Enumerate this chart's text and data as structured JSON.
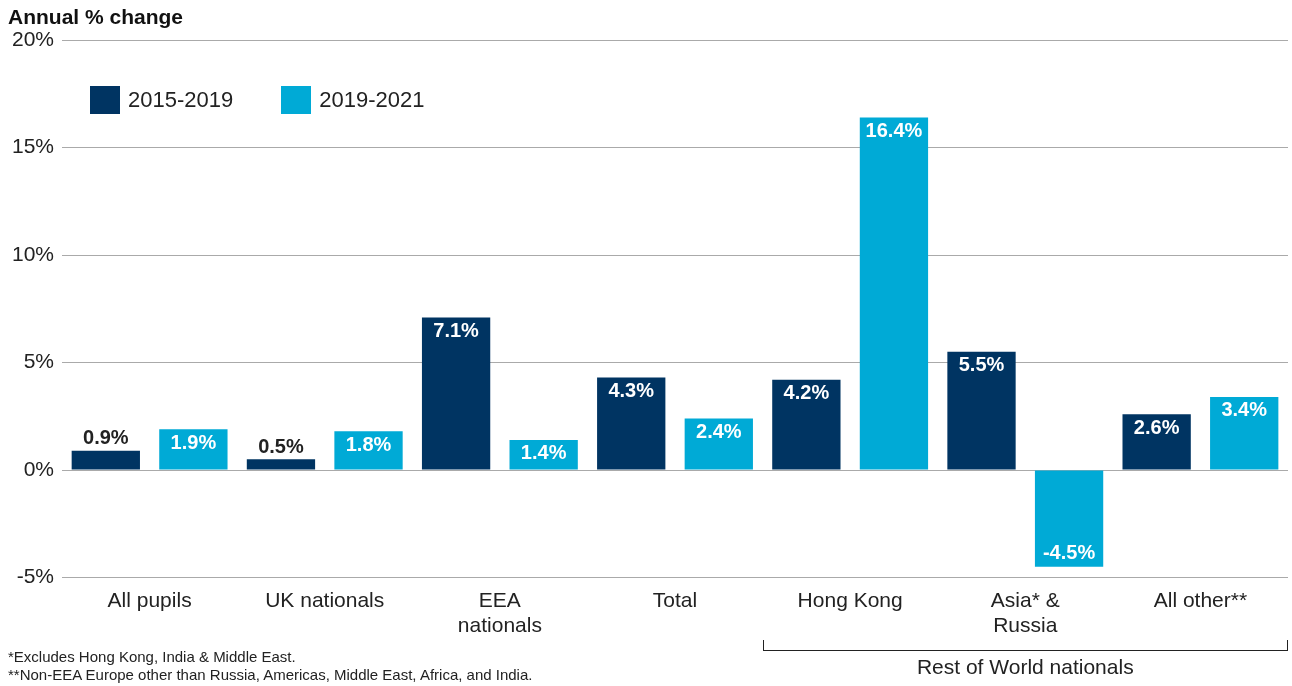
{
  "chart_data": {
    "type": "bar",
    "ylabel": "Annual % change",
    "categories": [
      "All pupils",
      "UK nationals",
      "EEA\nnationals",
      "Total",
      "Hong Kong",
      "Asia* &\nRussia",
      "All other**"
    ],
    "series": [
      {
        "name": "2015-2019",
        "color": "#003462",
        "values": [
          0.9,
          0.5,
          7.1,
          4.3,
          4.2,
          5.5,
          2.6
        ],
        "value_labels": [
          "0.9%",
          "0.5%",
          "7.1%",
          "4.3%",
          "4.2%",
          "5.5%",
          "2.6%"
        ]
      },
      {
        "name": "2019-2021",
        "color": "#00aad6",
        "values": [
          1.9,
          1.8,
          1.4,
          2.4,
          16.4,
          -4.5,
          3.4
        ],
        "value_labels": [
          "1.9%",
          "1.8%",
          "1.4%",
          "2.4%",
          "16.4%",
          "-4.5%",
          "3.4%"
        ]
      }
    ],
    "ylim": [
      -5,
      20
    ],
    "yticks": [
      {
        "value": -5,
        "label": "-5%"
      },
      {
        "value": 0,
        "label": "0%"
      },
      {
        "value": 5,
        "label": "5%"
      },
      {
        "value": 10,
        "label": "10%"
      },
      {
        "value": 15,
        "label": "15%"
      },
      {
        "value": 20,
        "label": "20%"
      }
    ],
    "grid": "y",
    "legend": "top left",
    "annotations": [
      "Rest of World nationals",
      "*Excludes Hong Kong, India & Middle East.",
      "**Non-EEA Europe other than Russia, Americas, Middle East, Africa, and India."
    ]
  }
}
